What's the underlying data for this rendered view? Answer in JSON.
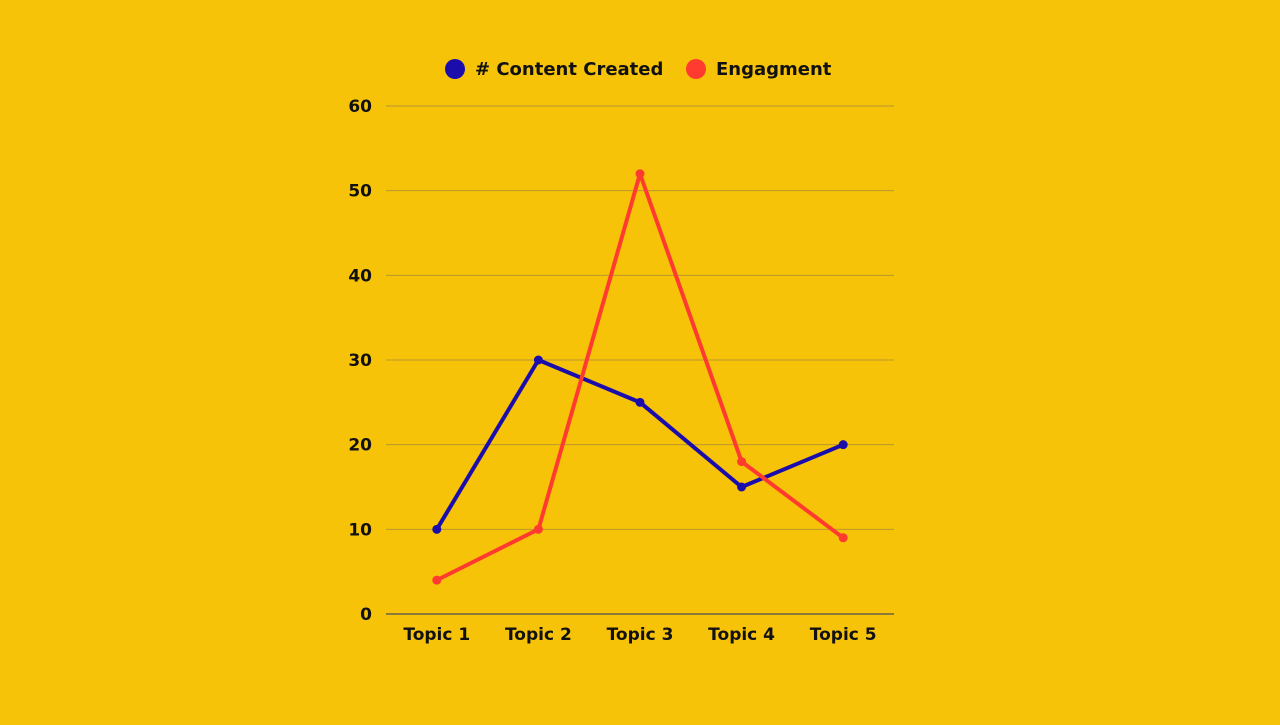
{
  "chart_data": {
    "type": "line",
    "categories": [
      "Topic 1",
      "Topic 2",
      "Topic 3",
      "Topic 4",
      "Topic 5"
    ],
    "series": [
      {
        "name": "# Content Created",
        "color": "#1A0DAB",
        "values": [
          10,
          30,
          25,
          15,
          20
        ]
      },
      {
        "name": "Engagment",
        "color": "#FF3B2F",
        "values": [
          4,
          10,
          52,
          18,
          9
        ]
      }
    ],
    "ylim": [
      0,
      60
    ],
    "yticks": [
      "0",
      "10",
      "20",
      "30",
      "40",
      "50",
      "60"
    ],
    "grid": true,
    "legend_position": "top-center",
    "background_color": "#F7C309"
  }
}
